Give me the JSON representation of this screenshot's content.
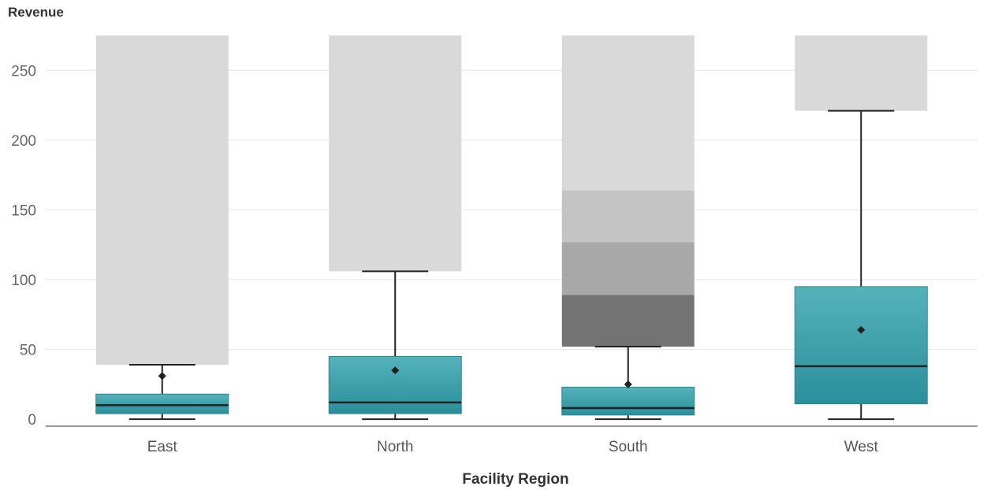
{
  "chart_data": {
    "type": "box",
    "xlabel": "Facility Region",
    "ylabel": "Revenue",
    "ylim": [
      -5,
      275
    ],
    "yticks": [
      0,
      50,
      100,
      150,
      200,
      250
    ],
    "grid": true,
    "categories": [
      "East",
      "North",
      "South",
      "West"
    ],
    "boxes": [
      {
        "name": "East",
        "whisker_low": 0,
        "q1": 4,
        "median": 10,
        "q3": 18,
        "whisker_high": 39,
        "mean": 31
      },
      {
        "name": "North",
        "whisker_low": 0,
        "q1": 4,
        "median": 12,
        "q3": 45,
        "whisker_high": 106,
        "mean": 35
      },
      {
        "name": "South",
        "whisker_low": 0,
        "q1": 3,
        "median": 8,
        "q3": 23,
        "whisker_high": 52,
        "mean": 25
      },
      {
        "name": "West",
        "whisker_low": 0,
        "q1": 11,
        "median": 38,
        "q3": 95,
        "whisker_high": 221,
        "mean": 64
      }
    ],
    "outlier_bands": [
      {
        "name": "East",
        "bands": [
          {
            "from": 39,
            "to": 275,
            "color": "#d9d9d9"
          }
        ]
      },
      {
        "name": "North",
        "bands": [
          {
            "from": 106,
            "to": 275,
            "color": "#d9d9d9"
          }
        ]
      },
      {
        "name": "South",
        "bands": [
          {
            "from": 52,
            "to": 89,
            "color": "#737373"
          },
          {
            "from": 89,
            "to": 127,
            "color": "#a8a8a8"
          },
          {
            "from": 127,
            "to": 164,
            "color": "#c4c4c4"
          },
          {
            "from": 164,
            "to": 275,
            "color": "#d9d9d9"
          }
        ]
      },
      {
        "name": "West",
        "bands": [
          {
            "from": 221,
            "to": 275,
            "color": "#d9d9d9"
          }
        ]
      }
    ],
    "colors": {
      "box_top": "#55b2ba",
      "box_bottom": "#2b8f9b",
      "box_stroke": "#2a8590",
      "line": "#222222",
      "grid": "#e6e6e6",
      "axis": "#333333"
    }
  }
}
